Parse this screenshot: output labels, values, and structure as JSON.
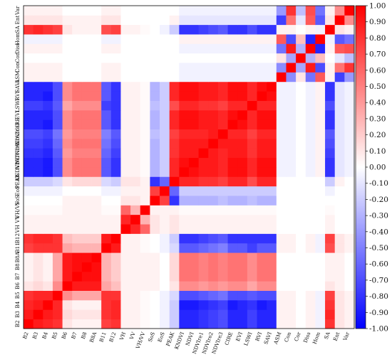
{
  "chart_data": {
    "type": "heatmap",
    "title": "",
    "xlabel": "",
    "ylabel": "",
    "labels": [
      "B2",
      "B3",
      "B4",
      "B5",
      "B6",
      "B7",
      "B8",
      "B8A",
      "B11",
      "B12",
      "VH",
      "VV",
      "VH/VV",
      "SoS",
      "EoS",
      "PEAK",
      "KNDVI",
      "NDVI",
      "NDVIre1",
      "NDVIre2",
      "NDVIre3",
      "CIRE",
      "EVI",
      "LSWI",
      "RVI",
      "SAVI",
      "ASM",
      "Con",
      "Cor",
      "Diss",
      "Hom",
      "SA",
      "Ent",
      "Var"
    ],
    "shown_x_labels": [
      "B2",
      "B3",
      "B4",
      "B5",
      "B6",
      "B7",
      "B8",
      "B8A",
      "B11",
      "B12",
      "VH",
      "VV",
      "VH/VV",
      "SoS",
      "EoS",
      "PEAK",
      "KNDVI",
      "NDVI",
      "NDVIre1",
      "NDVIre2",
      "NDVIre3",
      "CIRE",
      "EVI",
      "LSWI",
      "RVI",
      "SAVI",
      "ASM",
      "Con",
      "Cor",
      "Diss",
      "Hom",
      "SA",
      "Ent",
      "Var"
    ],
    "shown_y_labels": [
      "B2",
      "B3",
      "B4",
      "B5",
      "B6",
      "B7",
      "B8",
      "B8A",
      "B11",
      "B12",
      "VH",
      "VV",
      "VH/VV",
      "SoS",
      "EoS",
      "PEAK",
      "KNDVI",
      "NDVI",
      "NDVIre1",
      "NDVIre2",
      "NDVIre3",
      "CIRE",
      "EVI",
      "LSWI",
      "RVI",
      "SAVI",
      "ASM",
      "Con",
      "Cor",
      "Diss",
      "Hom",
      "SA",
      "Ent",
      "Var"
    ],
    "colorbar": {
      "vmin": -1.0,
      "vmax": 1.0,
      "ticks": [
        "1.00",
        "0.90",
        "0.80",
        "0.70",
        "0.60",
        "0.50",
        "0.40",
        "0.30",
        "0.20",
        "0.10",
        "0.00",
        "-0.10",
        "-0.20",
        "-0.30",
        "-0.40",
        "-0.50",
        "-0.60",
        "-0.70",
        "-0.80",
        "-0.90",
        "-1.00"
      ],
      "low_color": "#0000ff",
      "mid_color": "#ffffff",
      "high_color": "#ff0000"
    },
    "cells_note": "",
    "values": [
      [
        1.0,
        0.9,
        0.85,
        0.8,
        0.1,
        0.05,
        0.05,
        0.05,
        0.75,
        0.8,
        0.05,
        0.05,
        0.02,
        0.0,
        -0.05,
        -0.2,
        -0.85,
        -0.85,
        -0.8,
        -0.75,
        -0.7,
        -0.85,
        -0.85,
        -0.75,
        -0.85,
        -0.85,
        0.05,
        0.05,
        0.0,
        0.05,
        -0.05,
        0.8,
        0.1,
        0.05
      ],
      [
        0.9,
        1.0,
        0.9,
        0.85,
        0.15,
        0.1,
        0.1,
        0.1,
        0.8,
        0.85,
        0.05,
        0.05,
        0.02,
        0.0,
        -0.05,
        -0.2,
        -0.85,
        -0.85,
        -0.8,
        -0.75,
        -0.7,
        -0.85,
        -0.85,
        -0.75,
        -0.85,
        -0.85,
        0.05,
        0.05,
        0.0,
        0.05,
        -0.05,
        0.85,
        0.1,
        0.05
      ],
      [
        0.85,
        0.9,
        1.0,
        0.85,
        0.1,
        0.05,
        0.05,
        0.05,
        0.8,
        0.85,
        0.05,
        0.05,
        0.02,
        0.0,
        -0.05,
        -0.2,
        -0.9,
        -0.9,
        -0.85,
        -0.8,
        -0.75,
        -0.9,
        -0.85,
        -0.8,
        -0.9,
        -0.85,
        0.05,
        0.05,
        0.0,
        0.05,
        -0.05,
        0.8,
        0.1,
        0.05
      ],
      [
        0.8,
        0.85,
        0.85,
        1.0,
        0.45,
        0.35,
        0.35,
        0.35,
        0.8,
        0.8,
        0.05,
        0.05,
        0.02,
        0.0,
        -0.05,
        -0.15,
        -0.7,
        -0.7,
        -0.65,
        -0.6,
        -0.55,
        -0.7,
        -0.7,
        -0.65,
        -0.7,
        -0.7,
        0.05,
        0.05,
        0.0,
        0.05,
        -0.05,
        0.75,
        0.1,
        0.05
      ],
      [
        0.1,
        0.15,
        0.1,
        0.45,
        1.0,
        0.9,
        0.9,
        0.9,
        0.35,
        0.25,
        0.05,
        0.05,
        0.05,
        0.05,
        0.0,
        0.1,
        0.45,
        0.45,
        0.4,
        0.45,
        0.4,
        0.45,
        0.45,
        0.35,
        0.45,
        0.45,
        0.0,
        0.0,
        0.0,
        0.0,
        0.0,
        0.1,
        0.05,
        0.0
      ],
      [
        0.05,
        0.1,
        0.05,
        0.35,
        0.9,
        1.0,
        0.95,
        0.95,
        0.3,
        0.2,
        0.05,
        0.05,
        0.05,
        0.05,
        0.0,
        0.15,
        0.55,
        0.55,
        0.5,
        0.55,
        0.5,
        0.55,
        0.55,
        0.45,
        0.55,
        0.55,
        0.0,
        0.0,
        0.0,
        0.0,
        0.0,
        0.05,
        0.05,
        0.0
      ],
      [
        0.05,
        0.1,
        0.05,
        0.35,
        0.9,
        0.95,
        1.0,
        0.95,
        0.3,
        0.2,
        0.05,
        0.05,
        0.05,
        0.05,
        0.0,
        0.15,
        0.55,
        0.55,
        0.5,
        0.55,
        0.5,
        0.55,
        0.55,
        0.45,
        0.55,
        0.55,
        0.0,
        0.0,
        0.0,
        0.0,
        0.0,
        0.05,
        0.05,
        0.0
      ],
      [
        0.05,
        0.1,
        0.05,
        0.35,
        0.9,
        0.95,
        0.95,
        1.0,
        0.3,
        0.2,
        0.05,
        0.05,
        0.05,
        0.05,
        0.0,
        0.15,
        0.55,
        0.55,
        0.5,
        0.55,
        0.5,
        0.55,
        0.55,
        0.45,
        0.55,
        0.55,
        0.0,
        0.0,
        0.0,
        0.0,
        0.0,
        0.05,
        0.05,
        0.0
      ],
      [
        0.75,
        0.8,
        0.8,
        0.8,
        0.35,
        0.3,
        0.3,
        0.3,
        1.0,
        0.9,
        0.05,
        0.05,
        0.02,
        0.0,
        -0.05,
        -0.15,
        -0.65,
        -0.65,
        -0.6,
        -0.55,
        -0.5,
        -0.65,
        -0.65,
        -0.75,
        -0.65,
        -0.65,
        0.05,
        0.05,
        0.0,
        0.05,
        -0.05,
        0.7,
        0.1,
        0.05
      ],
      [
        0.8,
        0.85,
        0.85,
        0.8,
        0.25,
        0.2,
        0.2,
        0.2,
        0.9,
        1.0,
        0.05,
        0.05,
        0.02,
        0.0,
        -0.05,
        -0.2,
        -0.8,
        -0.8,
        -0.75,
        -0.7,
        -0.65,
        -0.8,
        -0.8,
        -0.8,
        -0.8,
        -0.8,
        0.05,
        0.05,
        0.0,
        0.05,
        -0.05,
        0.75,
        0.1,
        0.05
      ],
      [
        0.05,
        0.05,
        0.05,
        0.05,
        0.05,
        0.05,
        0.05,
        0.05,
        0.05,
        0.05,
        1.0,
        0.85,
        0.6,
        0.1,
        0.05,
        0.1,
        0.05,
        0.05,
        0.05,
        0.05,
        0.05,
        0.05,
        0.05,
        0.05,
        0.05,
        0.05,
        0.0,
        0.0,
        0.0,
        0.0,
        0.0,
        0.05,
        0.0,
        0.0
      ],
      [
        0.05,
        0.05,
        0.05,
        0.05,
        0.05,
        0.05,
        0.05,
        0.05,
        0.05,
        0.05,
        0.85,
        1.0,
        0.3,
        0.1,
        0.05,
        0.1,
        0.05,
        0.05,
        0.05,
        0.05,
        0.05,
        0.05,
        0.05,
        0.05,
        0.05,
        0.05,
        0.0,
        0.0,
        0.0,
        0.0,
        0.0,
        0.05,
        0.0,
        0.0
      ],
      [
        0.02,
        0.02,
        0.02,
        0.02,
        0.05,
        0.05,
        0.05,
        0.05,
        0.02,
        0.02,
        0.6,
        0.3,
        1.0,
        0.05,
        0.05,
        0.05,
        0.02,
        0.02,
        0.02,
        0.02,
        0.02,
        0.02,
        0.02,
        0.02,
        0.02,
        0.02,
        0.0,
        0.0,
        0.0,
        0.0,
        0.0,
        0.02,
        0.0,
        0.0
      ],
      [
        0.0,
        0.0,
        0.0,
        0.0,
        0.05,
        0.05,
        0.05,
        0.05,
        0.0,
        0.0,
        0.1,
        0.1,
        0.05,
        1.0,
        0.75,
        -0.8,
        -0.3,
        -0.3,
        -0.3,
        -0.3,
        -0.25,
        -0.3,
        -0.3,
        -0.25,
        -0.3,
        -0.3,
        0.0,
        0.0,
        0.0,
        0.0,
        0.0,
        0.0,
        0.0,
        0.0
      ],
      [
        -0.05,
        -0.05,
        -0.05,
        -0.05,
        0.0,
        0.0,
        0.0,
        0.0,
        -0.05,
        -0.05,
        0.05,
        0.05,
        0.05,
        0.75,
        1.0,
        -0.6,
        -0.2,
        -0.2,
        -0.2,
        -0.2,
        -0.2,
        -0.2,
        -0.2,
        -0.2,
        -0.2,
        -0.2,
        0.0,
        0.0,
        0.0,
        0.0,
        0.0,
        -0.05,
        0.0,
        0.0
      ],
      [
        -0.2,
        -0.2,
        -0.2,
        -0.15,
        0.1,
        0.15,
        0.15,
        0.15,
        -0.15,
        -0.2,
        0.1,
        0.1,
        0.05,
        -0.8,
        -0.6,
        1.0,
        0.85,
        0.85,
        0.8,
        0.8,
        0.75,
        0.85,
        0.85,
        0.7,
        0.85,
        0.85,
        0.0,
        0.0,
        0.0,
        0.0,
        0.0,
        -0.2,
        0.05,
        0.0
      ],
      [
        -0.85,
        -0.85,
        -0.9,
        -0.7,
        0.45,
        0.55,
        0.55,
        0.55,
        -0.65,
        -0.8,
        0.05,
        0.05,
        0.02,
        -0.3,
        -0.2,
        0.85,
        1.0,
        0.95,
        0.9,
        0.9,
        0.85,
        0.95,
        0.95,
        0.85,
        0.95,
        0.95,
        -0.05,
        -0.05,
        0.0,
        -0.05,
        0.05,
        -0.8,
        -0.1,
        -0.05
      ],
      [
        -0.85,
        -0.85,
        -0.9,
        -0.7,
        0.45,
        0.55,
        0.55,
        0.55,
        -0.65,
        -0.8,
        0.05,
        0.05,
        0.02,
        -0.3,
        -0.2,
        0.85,
        0.95,
        1.0,
        0.9,
        0.9,
        0.85,
        0.95,
        0.95,
        0.85,
        0.95,
        0.95,
        -0.05,
        -0.05,
        0.0,
        -0.05,
        0.05,
        -0.8,
        -0.1,
        -0.05
      ],
      [
        -0.8,
        -0.8,
        -0.85,
        -0.65,
        0.4,
        0.5,
        0.5,
        0.5,
        -0.6,
        -0.75,
        0.05,
        0.05,
        0.02,
        -0.3,
        -0.2,
        0.8,
        0.9,
        0.9,
        1.0,
        0.9,
        0.85,
        0.9,
        0.9,
        0.8,
        0.9,
        0.9,
        -0.05,
        -0.05,
        0.0,
        -0.05,
        0.05,
        -0.75,
        -0.1,
        -0.05
      ],
      [
        -0.75,
        -0.75,
        -0.8,
        -0.6,
        0.45,
        0.55,
        0.55,
        0.55,
        -0.55,
        -0.7,
        0.05,
        0.05,
        0.02,
        -0.3,
        -0.2,
        0.8,
        0.9,
        0.9,
        0.9,
        1.0,
        0.9,
        0.9,
        0.9,
        0.8,
        0.9,
        0.9,
        -0.05,
        -0.05,
        0.0,
        -0.05,
        0.05,
        -0.7,
        -0.1,
        -0.05
      ],
      [
        -0.7,
        -0.7,
        -0.75,
        -0.55,
        0.4,
        0.5,
        0.5,
        0.5,
        -0.5,
        -0.65,
        0.05,
        0.05,
        0.02,
        -0.25,
        -0.2,
        0.75,
        0.85,
        0.85,
        0.85,
        0.9,
        1.0,
        0.85,
        0.85,
        0.75,
        0.85,
        0.85,
        -0.05,
        -0.05,
        0.0,
        -0.05,
        0.05,
        -0.65,
        -0.1,
        -0.05
      ],
      [
        -0.85,
        -0.85,
        -0.9,
        -0.7,
        0.45,
        0.55,
        0.55,
        0.55,
        -0.65,
        -0.8,
        0.05,
        0.05,
        0.02,
        -0.3,
        -0.2,
        0.85,
        0.95,
        0.95,
        0.9,
        0.9,
        0.85,
        1.0,
        0.95,
        0.85,
        0.95,
        0.95,
        -0.05,
        -0.05,
        0.0,
        -0.05,
        0.05,
        -0.8,
        -0.1,
        -0.05
      ],
      [
        -0.85,
        -0.85,
        -0.85,
        -0.7,
        0.45,
        0.55,
        0.55,
        0.55,
        -0.65,
        -0.8,
        0.05,
        0.05,
        0.02,
        -0.3,
        -0.2,
        0.85,
        0.95,
        0.95,
        0.9,
        0.9,
        0.85,
        0.95,
        1.0,
        0.85,
        0.95,
        0.95,
        -0.05,
        -0.05,
        0.0,
        -0.05,
        0.05,
        -0.8,
        -0.1,
        -0.05
      ],
      [
        -0.75,
        -0.75,
        -0.8,
        -0.65,
        0.35,
        0.45,
        0.45,
        0.45,
        -0.75,
        -0.8,
        0.05,
        0.05,
        0.02,
        -0.25,
        -0.2,
        0.7,
        0.85,
        0.85,
        0.8,
        0.8,
        0.75,
        0.85,
        0.85,
        1.0,
        0.85,
        0.85,
        -0.05,
        -0.05,
        0.0,
        -0.05,
        0.05,
        -0.7,
        -0.1,
        -0.05
      ],
      [
        -0.85,
        -0.85,
        -0.9,
        -0.7,
        0.45,
        0.55,
        0.55,
        0.55,
        -0.65,
        -0.8,
        0.05,
        0.05,
        0.02,
        -0.3,
        -0.2,
        0.85,
        0.95,
        0.95,
        0.9,
        0.9,
        0.85,
        0.95,
        0.95,
        0.85,
        1.0,
        0.95,
        -0.05,
        -0.05,
        0.0,
        -0.05,
        0.05,
        -0.8,
        -0.1,
        -0.05
      ],
      [
        -0.85,
        -0.85,
        -0.85,
        -0.7,
        0.45,
        0.55,
        0.55,
        0.55,
        -0.65,
        -0.8,
        0.05,
        0.05,
        0.02,
        -0.3,
        -0.2,
        0.85,
        0.95,
        0.95,
        0.9,
        0.9,
        0.85,
        0.95,
        0.95,
        0.85,
        0.95,
        1.0,
        -0.05,
        -0.05,
        0.0,
        -0.05,
        0.05,
        -0.8,
        -0.1,
        -0.05
      ],
      [
        0.05,
        0.05,
        0.05,
        0.05,
        0.0,
        0.0,
        0.0,
        0.0,
        0.05,
        0.05,
        0.0,
        0.0,
        0.0,
        0.0,
        0.0,
        0.0,
        -0.05,
        -0.05,
        -0.05,
        -0.05,
        -0.05,
        -0.05,
        -0.05,
        -0.05,
        -0.05,
        -0.05,
        1.0,
        -0.45,
        0.1,
        -0.55,
        0.65,
        0.05,
        -0.75,
        -0.4
      ],
      [
        0.05,
        0.05,
        0.05,
        0.05,
        0.0,
        0.0,
        0.0,
        0.0,
        0.05,
        0.05,
        0.0,
        0.0,
        0.0,
        0.0,
        0.0,
        0.0,
        -0.05,
        -0.05,
        -0.05,
        -0.05,
        -0.05,
        -0.05,
        -0.05,
        -0.05,
        -0.05,
        -0.05,
        -0.45,
        1.0,
        -0.35,
        0.9,
        -0.7,
        0.05,
        0.55,
        0.8
      ],
      [
        0.0,
        0.0,
        0.0,
        0.0,
        0.0,
        0.0,
        0.0,
        0.0,
        0.0,
        0.0,
        0.0,
        0.0,
        0.0,
        0.0,
        0.0,
        0.0,
        0.0,
        0.0,
        0.0,
        0.0,
        0.0,
        0.0,
        0.0,
        0.0,
        0.0,
        0.0,
        0.1,
        -0.35,
        1.0,
        -0.3,
        0.25,
        0.0,
        -0.1,
        -0.25
      ],
      [
        0.05,
        0.05,
        0.05,
        0.05,
        0.0,
        0.0,
        0.0,
        0.0,
        0.05,
        0.05,
        0.0,
        0.0,
        0.0,
        0.0,
        0.0,
        0.0,
        -0.05,
        -0.05,
        -0.05,
        -0.05,
        -0.05,
        -0.05,
        -0.05,
        -0.05,
        -0.05,
        -0.05,
        -0.55,
        0.9,
        -0.3,
        1.0,
        -0.85,
        0.05,
        0.65,
        0.7
      ],
      [
        -0.05,
        -0.05,
        -0.05,
        -0.05,
        0.0,
        0.0,
        0.0,
        0.0,
        -0.05,
        -0.05,
        0.0,
        0.0,
        0.0,
        0.0,
        0.0,
        0.0,
        0.05,
        0.05,
        0.05,
        0.05,
        0.05,
        0.05,
        0.05,
        0.05,
        0.05,
        0.05,
        0.65,
        -0.7,
        0.25,
        -0.85,
        1.0,
        -0.05,
        -0.65,
        -0.55
      ],
      [
        0.8,
        0.85,
        0.8,
        0.75,
        0.1,
        0.05,
        0.05,
        0.05,
        0.7,
        0.75,
        0.05,
        0.05,
        0.02,
        0.0,
        -0.05,
        -0.2,
        -0.8,
        -0.8,
        -0.75,
        -0.7,
        -0.65,
        -0.8,
        -0.8,
        -0.7,
        -0.8,
        -0.8,
        0.05,
        0.05,
        0.0,
        0.05,
        -0.05,
        1.0,
        0.1,
        0.05
      ],
      [
        0.1,
        0.1,
        0.1,
        0.1,
        0.05,
        0.05,
        0.05,
        0.05,
        0.1,
        0.1,
        0.0,
        0.0,
        0.0,
        0.0,
        0.0,
        0.05,
        -0.1,
        -0.1,
        -0.1,
        -0.1,
        -0.1,
        -0.1,
        -0.1,
        -0.1,
        -0.1,
        -0.1,
        -0.75,
        0.55,
        -0.1,
        0.65,
        -0.65,
        0.1,
        1.0,
        0.45
      ],
      [
        0.05,
        0.05,
        0.05,
        0.05,
        0.0,
        0.0,
        0.0,
        0.0,
        0.05,
        0.05,
        0.0,
        0.0,
        0.0,
        0.0,
        0.0,
        0.0,
        -0.05,
        -0.05,
        -0.05,
        -0.05,
        -0.05,
        -0.05,
        -0.05,
        -0.05,
        -0.05,
        -0.05,
        -0.4,
        0.8,
        -0.25,
        0.7,
        -0.55,
        0.05,
        0.45,
        1.0
      ]
    ]
  }
}
